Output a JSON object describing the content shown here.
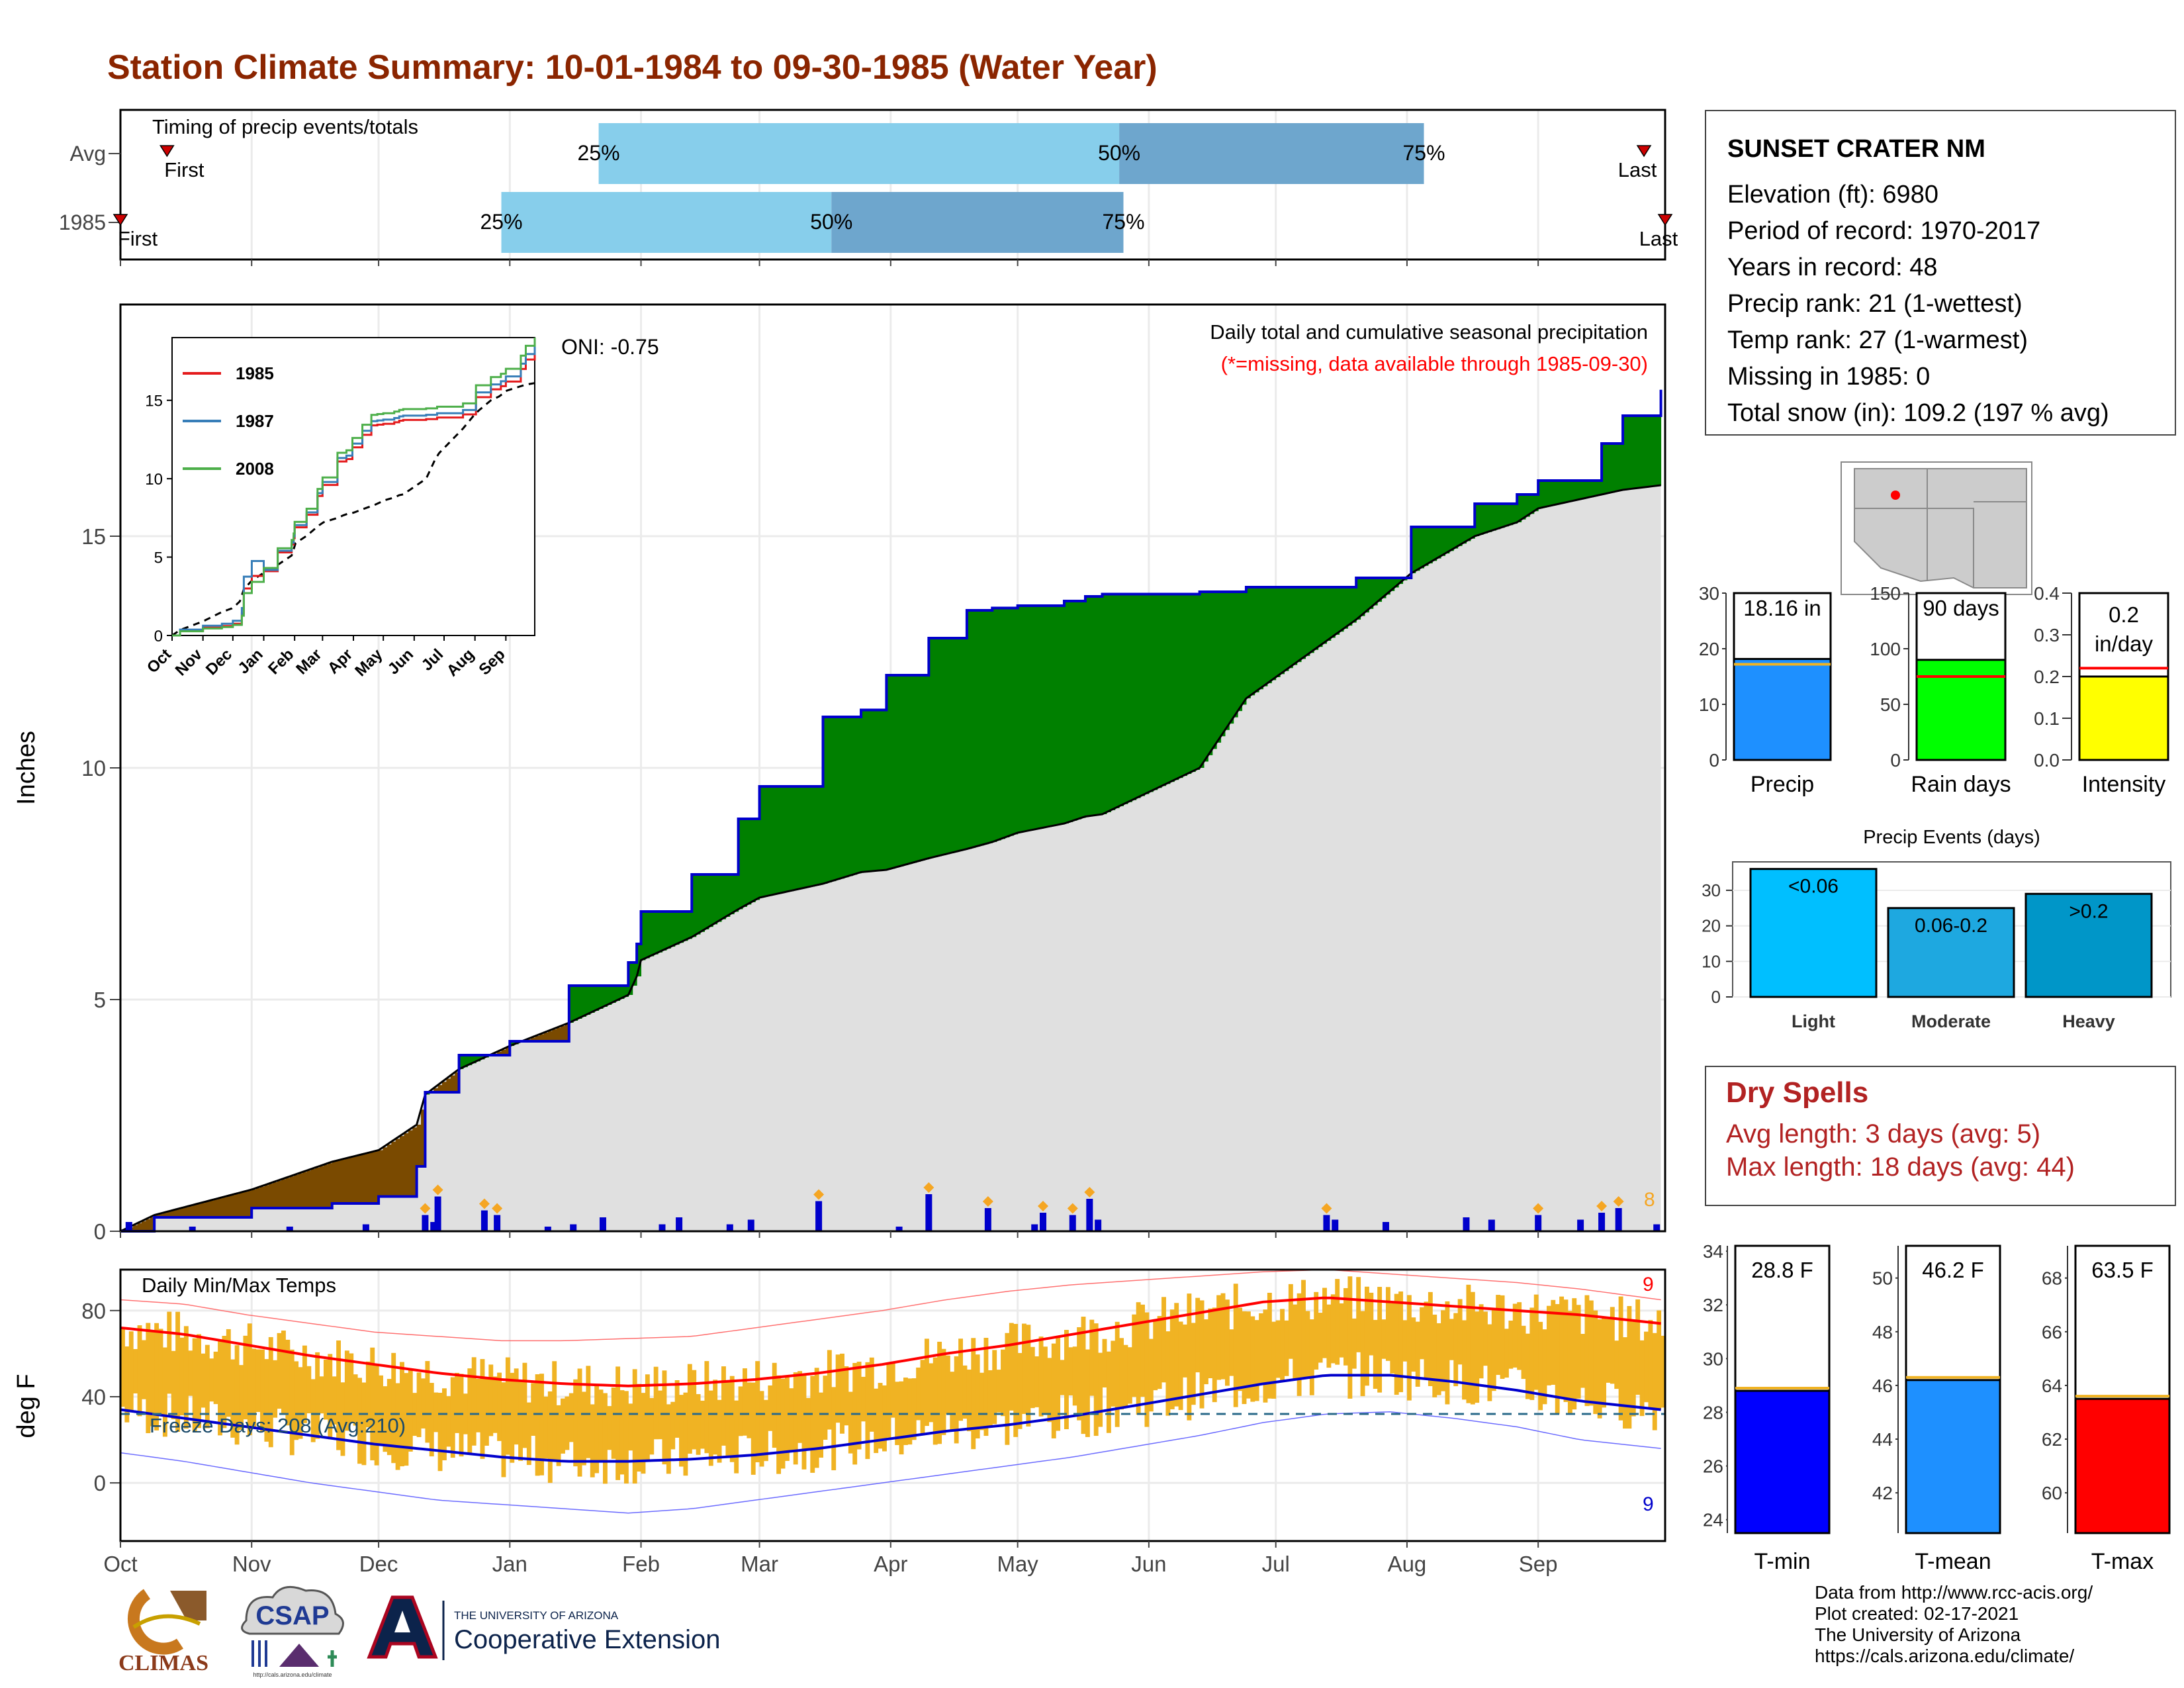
{
  "title": "Station Climate Summary: 10-01-1984 to 09-30-1985 (Water Year)",
  "colors": {
    "title": "#8b2500",
    "cum_precip_line": "#0000cc",
    "surplus": "#008000",
    "deficit": "#7a4a00",
    "avg_fill": "#e0e0e0",
    "daily_bar": "#0000cc",
    "timing_light": "#87ceeb",
    "timing_dark": "#6ea6cd",
    "temp_bar": "#f0b323",
    "tmax_line": "#ff0000",
    "tmin_line": "#0000cc",
    "snow_marker": "#87ceeb"
  },
  "station": {
    "name": "SUNSET CRATER NM",
    "lines": [
      "Elevation (ft): 6980",
      "Period of record: 1970-2017",
      "Years in record: 48",
      "Precip rank: 21 (1-wettest)",
      "Temp rank: 27 (1-warmest)",
      "Missing in 1985: 0",
      "Total snow (in): 109.2 (197 % avg)"
    ]
  },
  "timing": {
    "label": "Timing of precip events/totals",
    "rows": [
      {
        "name": "Avg",
        "first_label": "First",
        "last_label": "Last",
        "first_day": 11,
        "last_day": 360,
        "p25": 113,
        "p50": 236,
        "p75": 308,
        "p25_label": "25%",
        "p50_label": "50%",
        "p75_label": "75%"
      },
      {
        "name": "1985",
        "first_label": "First",
        "last_label": "Last",
        "first_day": 0,
        "last_day": 365,
        "p25": 90,
        "p50": 168,
        "p75": 237,
        "p25_label": "25%",
        "p50_label": "50%",
        "p75_label": "75%"
      }
    ]
  },
  "main": {
    "ylabel": "Inches",
    "title": "Daily total and cumulative seasonal precipitation",
    "subtitle": "(*=missing, data available through 1985-09-30)",
    "oni": "ONI: -0.75",
    "event_count": "8"
  },
  "temp_panel": {
    "ylabel": "deg F",
    "title": "Daily Min/Max Temps",
    "freeze_label": "Freeze Days: 208 (Avg:210)",
    "record_high_count": "9",
    "record_low_count": "9"
  },
  "months": [
    "Oct",
    "Nov",
    "Dec",
    "Jan",
    "Feb",
    "Mar",
    "Apr",
    "May",
    "Jun",
    "Jul",
    "Aug",
    "Sep"
  ],
  "inset_months": [
    "Oct",
    "Nov",
    "Dec",
    "Jan",
    "Feb",
    "Mar",
    "Apr",
    "May",
    "Jun",
    "Jul",
    "Aug",
    "Sep"
  ],
  "mini": {
    "precip": {
      "value_label": "18.16 in",
      "xlabel": "Precip",
      "value": 18.16,
      "avg": 17.2,
      "ylim": [
        0,
        30
      ],
      "ticks": [
        0,
        10,
        20,
        30
      ],
      "color": "#1e90ff"
    },
    "rain_days": {
      "value_label": "90 days",
      "xlabel": "Rain days",
      "value": 90,
      "avg": 75,
      "ylim": [
        0,
        150
      ],
      "ticks": [
        0,
        50,
        100,
        150
      ],
      "color": "#00ff00"
    },
    "intensity": {
      "value_label": "0.2\nin/day",
      "xlabel": "Intensity",
      "value": 0.2,
      "avg": 0.22,
      "ylim": [
        0,
        0.4
      ],
      "ticks": [
        "0.0",
        "0.1",
        "0.2",
        "0.3",
        "0.4"
      ],
      "color": "#ffff00"
    }
  },
  "events": {
    "title": "Precip Events (days)",
    "categories": [
      "Light",
      "Moderate",
      "Heavy"
    ],
    "labels": [
      "<0.06",
      "0.06-0.2",
      ">0.2"
    ],
    "values": [
      36,
      25,
      29
    ],
    "ylim": [
      0,
      36
    ],
    "ticks": [
      0,
      10,
      20,
      30
    ],
    "colors": [
      "#00bfff",
      "#1ea8e0",
      "#0096c8"
    ]
  },
  "dry_spells": {
    "title": "Dry Spells",
    "avg_line": "Avg length: 3 days (avg: 5)",
    "max_line": "Max length: 18 days (avg: 44)"
  },
  "temps": {
    "tmin": {
      "value_label": "28.8 F",
      "xlabel": "T-min",
      "value": 28.8,
      "avg": 28.9,
      "ylim": [
        23.5,
        34.2
      ],
      "ticks": [
        24,
        26,
        28,
        30,
        32,
        34
      ],
      "color": "#0000ff"
    },
    "tmean": {
      "value_label": "46.2 F",
      "xlabel": "T-mean",
      "value": 46.2,
      "avg": 46.3,
      "ylim": [
        40.5,
        51.2
      ],
      "ticks": [
        42,
        44,
        46,
        48,
        50
      ],
      "color": "#1e90ff"
    },
    "tmax": {
      "value_label": "63.5 F",
      "xlabel": "T-max",
      "value": 63.5,
      "avg": 63.6,
      "ylim": [
        58.5,
        69.2
      ],
      "ticks": [
        60,
        62,
        64,
        66,
        68
      ],
      "color": "#ff0000"
    }
  },
  "credits": [
    "Data from http://www.rcc-acis.org/",
    "Plot created: 02-17-2021",
    "The University of Arizona",
    "https://cals.arizona.edu/climate/"
  ],
  "logos": {
    "climas": "CLIMAS",
    "csap": "CSAP",
    "csap_url": "http://cals.arizona.edu/climate",
    "ua_line1": "THE UNIVERSITY OF ARIZONA",
    "ua_line2": "Cooperative Extension"
  },
  "chart_data": [
    {
      "type": "area",
      "title": "Daily total and cumulative seasonal precipitation",
      "ylabel": "Inches",
      "ylim": [
        0,
        20
      ],
      "yticks": [
        0,
        5,
        10,
        15
      ],
      "x_day": [
        0,
        8,
        31,
        50,
        61,
        70,
        72,
        80,
        92,
        106,
        120,
        122,
        123,
        135,
        146,
        151,
        166,
        175,
        181,
        191,
        200,
        206,
        212,
        223,
        228,
        232,
        255,
        266,
        292,
        305,
        320,
        330,
        335,
        350,
        355,
        364
      ],
      "series": [
        {
          "name": "1985",
          "values": [
            0,
            0.3,
            0.5,
            0.6,
            0.75,
            1.4,
            3.0,
            3.8,
            4.1,
            5.3,
            5.8,
            6.2,
            6.9,
            7.7,
            8.9,
            9.6,
            11.1,
            11.25,
            12.0,
            12.8,
            13.4,
            13.45,
            13.5,
            13.6,
            13.7,
            13.75,
            13.8,
            13.9,
            14.1,
            15.2,
            15.7,
            15.9,
            16.2,
            17.0,
            17.6,
            18.16
          ]
        },
        {
          "name": "Avg",
          "values": [
            0,
            0.35,
            0.9,
            1.5,
            1.75,
            2.3,
            2.95,
            3.5,
            4.0,
            4.5,
            5.1,
            5.5,
            5.85,
            6.35,
            6.95,
            7.2,
            7.5,
            7.75,
            7.8,
            8.05,
            8.25,
            8.4,
            8.6,
            8.8,
            8.95,
            9.0,
            10.0,
            11.5,
            13.2,
            14.2,
            15.0,
            15.3,
            15.6,
            15.9,
            16.0,
            16.1
          ]
        }
      ],
      "daily_precip": {
        "day": [
          2,
          17,
          40,
          58,
          72,
          74,
          75,
          86,
          89,
          101,
          107,
          114,
          128,
          132,
          144,
          149,
          165,
          184,
          191,
          205,
          216,
          218,
          225,
          229,
          231,
          285,
          287,
          299,
          318,
          324,
          335,
          345,
          350,
          354,
          363
        ],
        "inches": [
          0.2,
          0.1,
          0.1,
          0.15,
          0.35,
          0.2,
          0.75,
          0.45,
          0.35,
          0.1,
          0.15,
          0.3,
          0.15,
          0.3,
          0.15,
          0.25,
          0.65,
          0.1,
          0.8,
          0.5,
          0.15,
          0.4,
          0.35,
          0.7,
          0.25,
          0.35,
          0.25,
          0.2,
          0.3,
          0.25,
          0.35,
          0.25,
          0.4,
          0.5,
          0.15
        ]
      }
    },
    {
      "type": "line",
      "title": "Daily Min/Max Temps",
      "ylabel": "deg F",
      "ylim": [
        -25,
        100
      ],
      "yticks": [
        0,
        40,
        80
      ],
      "freeze_line": 32,
      "x_day": [
        0,
        15,
        30,
        45,
        60,
        75,
        90,
        105,
        120,
        135,
        150,
        165,
        180,
        195,
        210,
        225,
        240,
        255,
        270,
        285,
        300,
        315,
        330,
        345,
        364
      ],
      "series": [
        {
          "name": "Avg max",
          "values": [
            72,
            69,
            64,
            59,
            55,
            51,
            48,
            46,
            45,
            46,
            48,
            51,
            55,
            60,
            64,
            69,
            74,
            79,
            84,
            86,
            84,
            82,
            80,
            78,
            74
          ]
        },
        {
          "name": "Avg min",
          "values": [
            34,
            30,
            26,
            22,
            18,
            15,
            12,
            10,
            10,
            11,
            13,
            16,
            20,
            24,
            27,
            31,
            36,
            41,
            46,
            50,
            50,
            47,
            43,
            38,
            34
          ]
        },
        {
          "name": "Record high",
          "values": [
            85,
            83,
            78,
            74,
            70,
            68,
            66,
            66,
            67,
            68,
            72,
            76,
            80,
            85,
            89,
            92,
            94,
            96,
            98,
            99,
            97,
            95,
            93,
            90,
            85
          ]
        },
        {
          "name": "Record low",
          "values": [
            14,
            10,
            5,
            0,
            -4,
            -8,
            -10,
            -12,
            -14,
            -12,
            -8,
            -4,
            0,
            4,
            8,
            12,
            17,
            22,
            28,
            32,
            33,
            30,
            26,
            20,
            16
          ]
        }
      ]
    },
    {
      "type": "bar",
      "title": "Precip Events (days)",
      "categories": [
        "Light",
        "Moderate",
        "Heavy"
      ],
      "values": [
        36,
        25,
        29
      ]
    }
  ]
}
